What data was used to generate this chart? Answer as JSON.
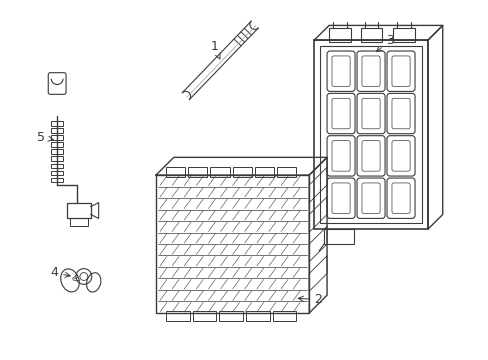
{
  "background_color": "#ffffff",
  "line_color": "#3a3a3a",
  "figsize": [
    4.89,
    3.6
  ],
  "dpi": 100
}
